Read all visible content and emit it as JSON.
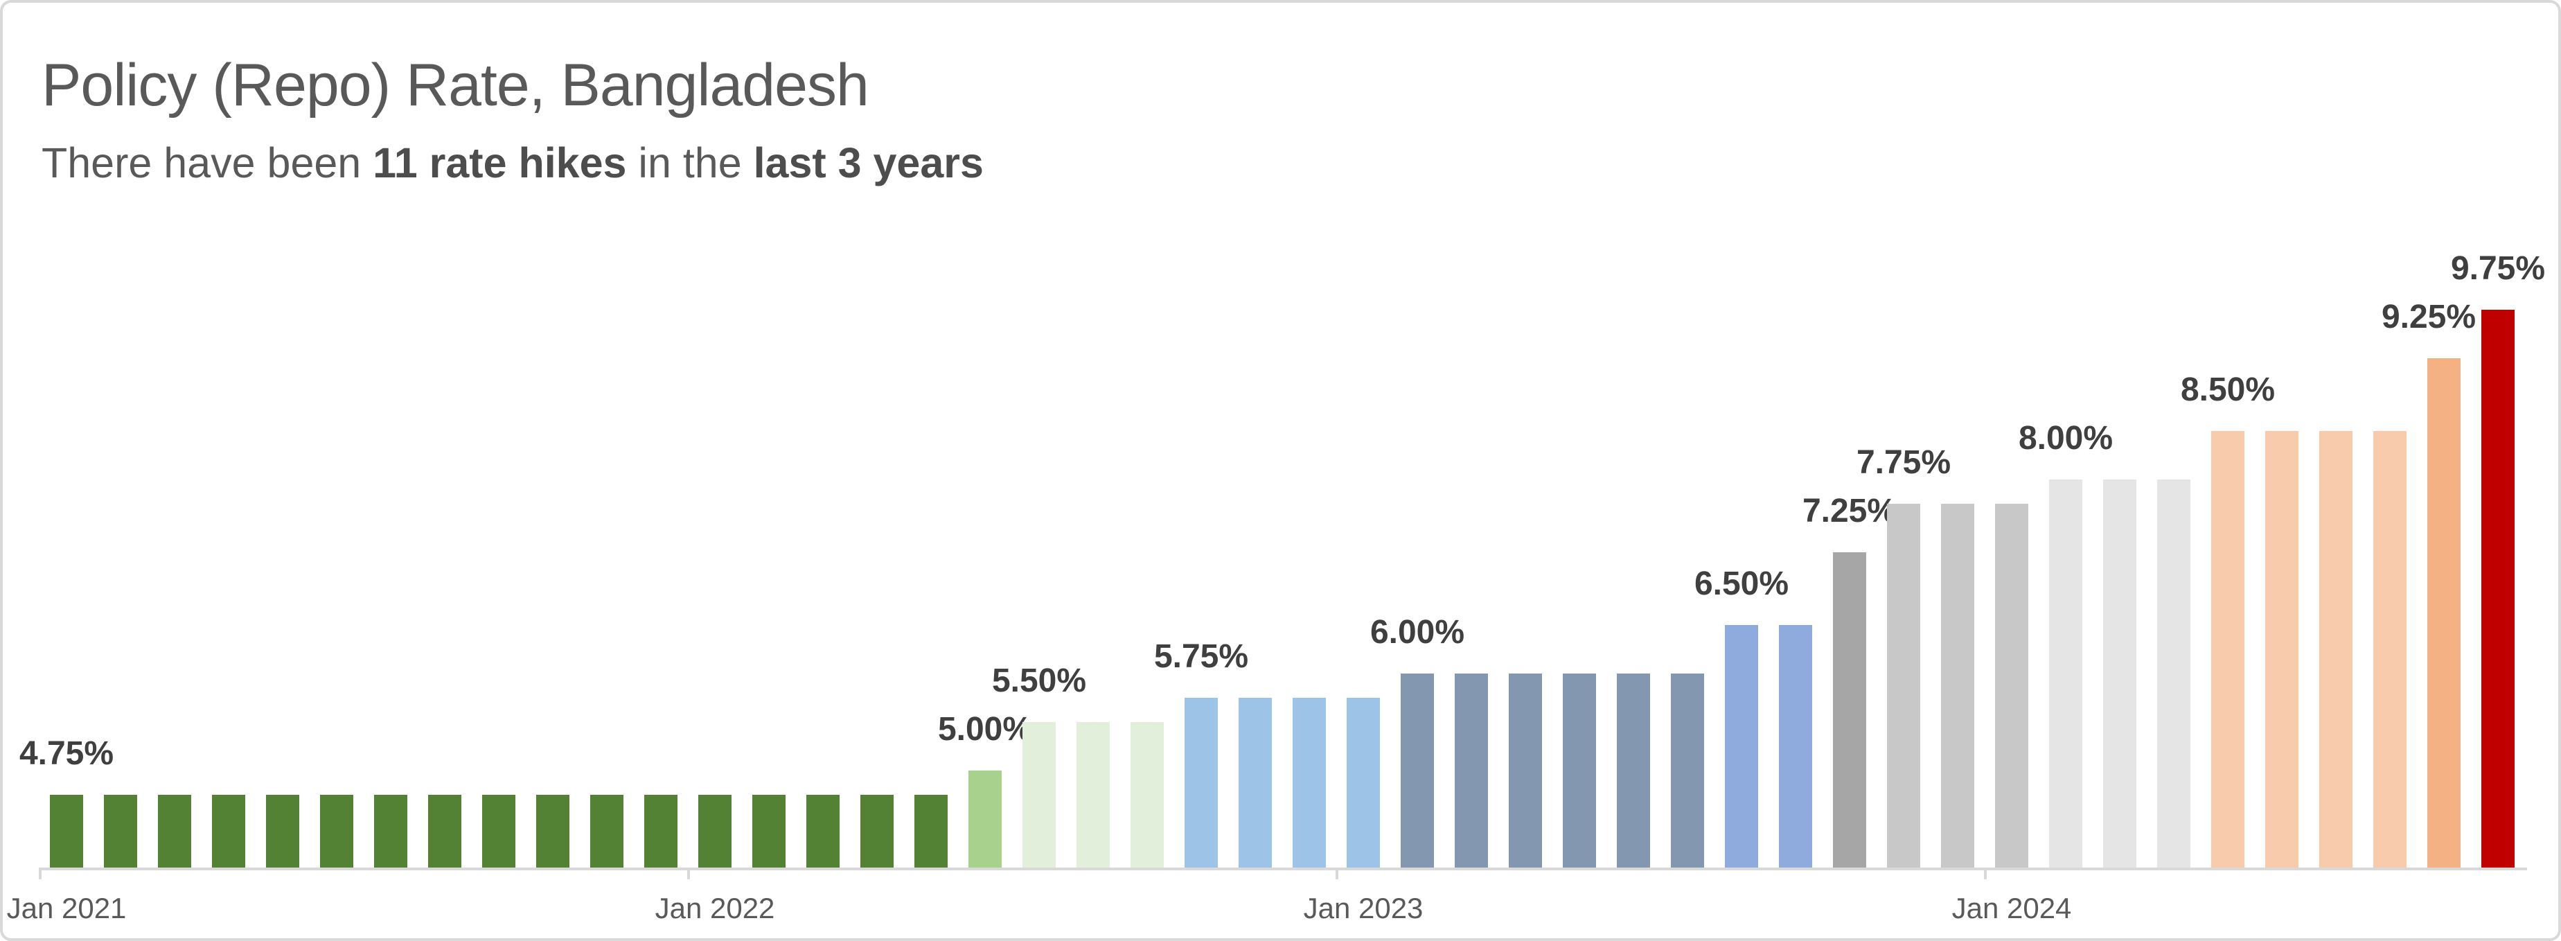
{
  "header": {
    "title": "Policy (Repo) Rate, Bangladesh",
    "subtitle": {
      "pre": "There have been ",
      "bold1": "11 rate hikes",
      "mid": " in the ",
      "bold2": "last 3 years"
    }
  },
  "chart_data": {
    "type": "bar",
    "unit": "percent",
    "x_start": "Jan 2021",
    "x_end": "Oct 2024",
    "total_bars": 46,
    "ylim": [
      4.0,
      10.0
    ],
    "grid": false,
    "legend": "none",
    "y_axis_shown": false,
    "axis": {
      "tick_labels": [
        "Jan 2021",
        "Jan 2022",
        "Jan 2023",
        "Jan 2024"
      ],
      "tick_month_indexes": [
        0,
        12,
        24,
        36
      ]
    },
    "groups": [
      {
        "label": "4.75%",
        "value": 4.75,
        "count": 17,
        "months": "Jan 2021 - May 2022",
        "color": "#548235"
      },
      {
        "label": "5.00%",
        "value": 5.0,
        "count": 1,
        "months": "Jun 2022",
        "color": "#A9D18E"
      },
      {
        "label": "5.50%",
        "value": 5.5,
        "count": 3,
        "months": "Jul 2022 - Sep 2022",
        "color": "#E2EFDA"
      },
      {
        "label": "5.75%",
        "value": 5.75,
        "count": 4,
        "months": "Oct 2022 - Jan 2023",
        "color": "#9DC3E6"
      },
      {
        "label": "6.00%",
        "value": 6.0,
        "count": 6,
        "months": "Feb 2023 - Jul 2023",
        "color": "#8497B0"
      },
      {
        "label": "6.50%",
        "value": 6.5,
        "count": 2,
        "months": "Aug 2023 - Sep 2023",
        "color": "#8FAADC"
      },
      {
        "label": "7.25%",
        "value": 7.25,
        "count": 1,
        "months": "Oct 2023",
        "color": "#A6A6A6"
      },
      {
        "label": "7.75%",
        "value": 7.75,
        "count": 3,
        "months": "Nov 2023 - Jan 2024",
        "color": "#C8C8C8"
      },
      {
        "label": "8.00%",
        "value": 8.0,
        "count": 3,
        "months": "Feb 2024 - Apr 2024",
        "color": "#E5E5E5"
      },
      {
        "label": "8.50%",
        "value": 8.5,
        "count": 4,
        "months": "May 2024 - Aug 2024",
        "color": "#F8CBAD"
      },
      {
        "label": "9.25%",
        "value": 9.25,
        "count": 1,
        "months": "Sep 2024",
        "color": "#F4B183",
        "label_dx": -22
      },
      {
        "label": "9.75%",
        "value": 9.75,
        "count": 1,
        "months": "Oct 2024",
        "color": "#C00000"
      }
    ]
  },
  "style": {
    "frame_border": "#d9d9d9",
    "background": "#ffffff",
    "axis_color": "#d9d9d9",
    "title_color": "#595959",
    "subtitle_color": "#595959",
    "value_label_color": "#3f3f3f",
    "tick_label_color": "#595959"
  }
}
